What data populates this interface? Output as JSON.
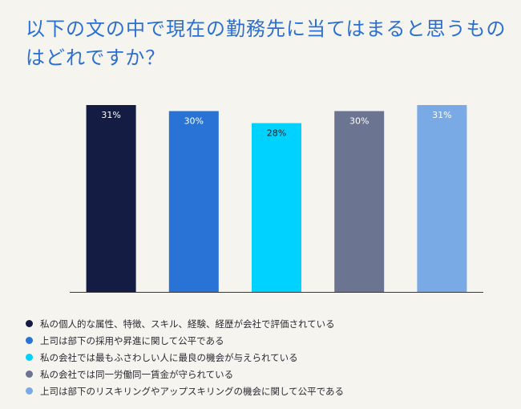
{
  "title": "以下の文の中で現在の勤務先に当てはまると思うものはどれですか？",
  "chart_data": {
    "type": "bar",
    "title": "以下の文の中で現在の勤務先に当てはまると思うものはどれですか？",
    "categories": [
      "私の個人的な属性、特徴、スキル、経験、経歴が会社で評価されている",
      "上司は部下の採用や昇進に関して公平である",
      "私の会社では最もふさわしい人に最良の機会が与えられている",
      "私の会社では同一労働同一賃金が守られている",
      "上司は部下のリスキリングやアップスキリングの機会に関して公平である"
    ],
    "values": [
      31,
      30,
      28,
      30,
      31
    ],
    "labels": [
      "31%",
      "30%",
      "28%",
      "30%",
      "31%"
    ],
    "colors": [
      "#141c44",
      "#2a73d6",
      "#00d2ff",
      "#6b7491",
      "#79aae6"
    ],
    "label_colors": [
      "#ffffff",
      "#ffffff",
      "#1a1a1a",
      "#ffffff",
      "#ffffff"
    ],
    "ylim": [
      0,
      31
    ],
    "xlabel": "",
    "ylabel": "",
    "grid": false,
    "legend": "bottom"
  }
}
